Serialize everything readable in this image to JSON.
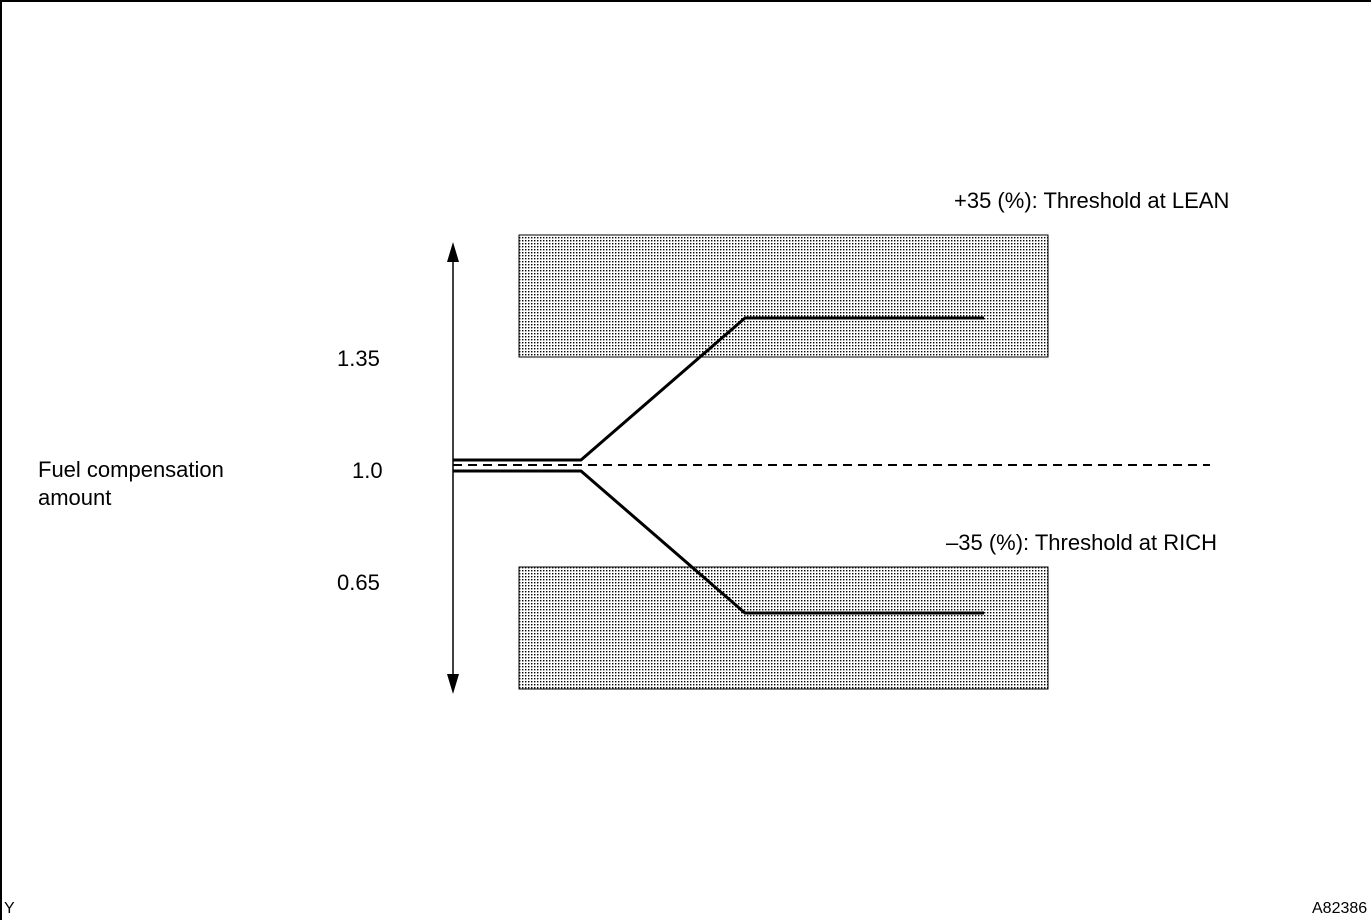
{
  "diagram": {
    "ylabel_line1": "Fuel compensation",
    "ylabel_line2": "amount",
    "ticks": {
      "upper": "1.35",
      "center": "1.0",
      "lower": "0.65"
    },
    "lean_threshold": "+35 (%): Threshold at LEAN",
    "rich_threshold": "–35 (%): Threshold at RICH",
    "corner_left": "Y",
    "corner_right": "A82386"
  },
  "colors": {
    "line": "#000000",
    "zone_fill": "#c8c8c8",
    "background": "#ffffff"
  }
}
